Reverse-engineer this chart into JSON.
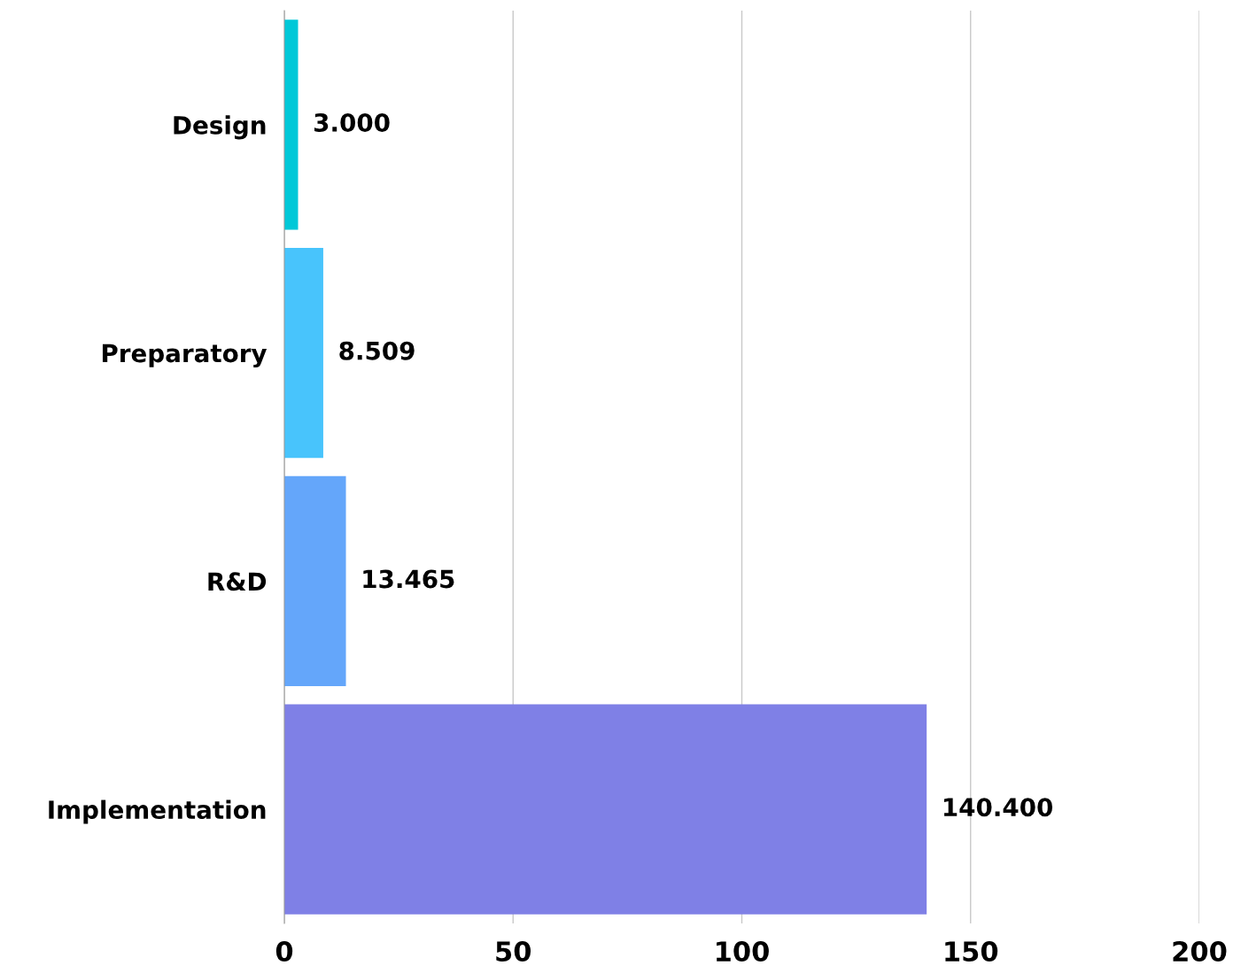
{
  "chart_data": {
    "type": "bar",
    "orientation": "horizontal",
    "categories": [
      "Design",
      "Preparatory",
      "R&D",
      "Implementation"
    ],
    "values": [
      3,
      8.509,
      13.465,
      140.4
    ],
    "colors": [
      "#00c8d8",
      "#48c4fc",
      "#64a6fa",
      "#7f80e6"
    ],
    "value_labels": [
      "3.000",
      "8.509",
      "13.465",
      "140.400"
    ],
    "xlim": [
      0,
      200
    ],
    "xticks": [
      0,
      50,
      100,
      150,
      200
    ],
    "grid": "x"
  }
}
